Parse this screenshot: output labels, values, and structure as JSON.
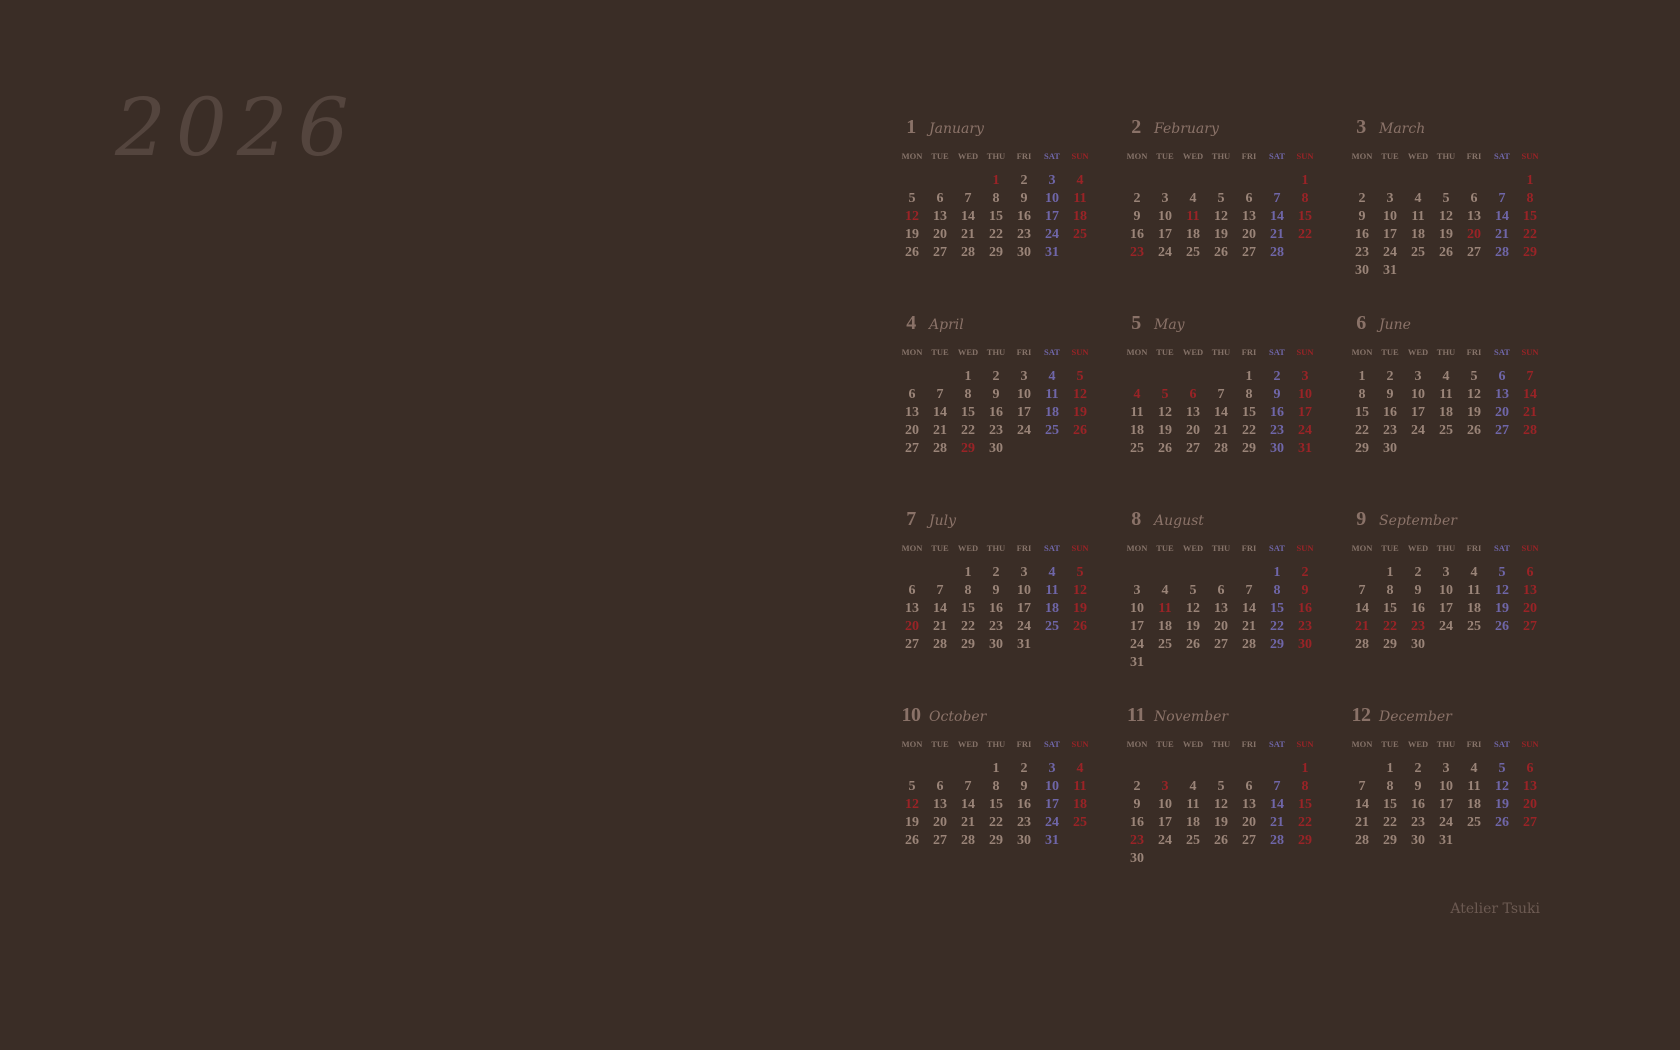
{
  "year": "2026",
  "brand": "Atelier Tsuki",
  "colors": {
    "background": "#3a2d26",
    "year_text": "#54453e",
    "weekday_text": "#9a8478",
    "saturday": "#6f66a8",
    "sunday_holiday": "#9a2326"
  },
  "weekday_labels": [
    "MON",
    "TUE",
    "WED",
    "THU",
    "FRI",
    "SAT",
    "SUN"
  ],
  "months": [
    {
      "number": "1",
      "name": "January",
      "first_weekday": 3,
      "days": 31,
      "holidays": [
        1,
        12
      ]
    },
    {
      "number": "2",
      "name": "February",
      "first_weekday": 6,
      "days": 28,
      "holidays": [
        11,
        23
      ]
    },
    {
      "number": "3",
      "name": "March",
      "first_weekday": 6,
      "days": 31,
      "holidays": [
        20
      ]
    },
    {
      "number": "4",
      "name": "April",
      "first_weekday": 2,
      "days": 30,
      "holidays": [
        29
      ]
    },
    {
      "number": "5",
      "name": "May",
      "first_weekday": 4,
      "days": 31,
      "holidays": [
        4,
        5,
        6
      ]
    },
    {
      "number": "6",
      "name": "June",
      "first_weekday": 0,
      "days": 30,
      "holidays": []
    },
    {
      "number": "7",
      "name": "July",
      "first_weekday": 2,
      "days": 31,
      "holidays": [
        20
      ]
    },
    {
      "number": "8",
      "name": "August",
      "first_weekday": 5,
      "days": 31,
      "holidays": [
        11
      ]
    },
    {
      "number": "9",
      "name": "September",
      "first_weekday": 1,
      "days": 30,
      "holidays": [
        21,
        22,
        23
      ]
    },
    {
      "number": "10",
      "name": "October",
      "first_weekday": 3,
      "days": 31,
      "holidays": [
        12
      ]
    },
    {
      "number": "11",
      "name": "November",
      "first_weekday": 6,
      "days": 30,
      "holidays": [
        3,
        23
      ]
    },
    {
      "number": "12",
      "name": "December",
      "first_weekday": 1,
      "days": 31,
      "holidays": []
    }
  ]
}
